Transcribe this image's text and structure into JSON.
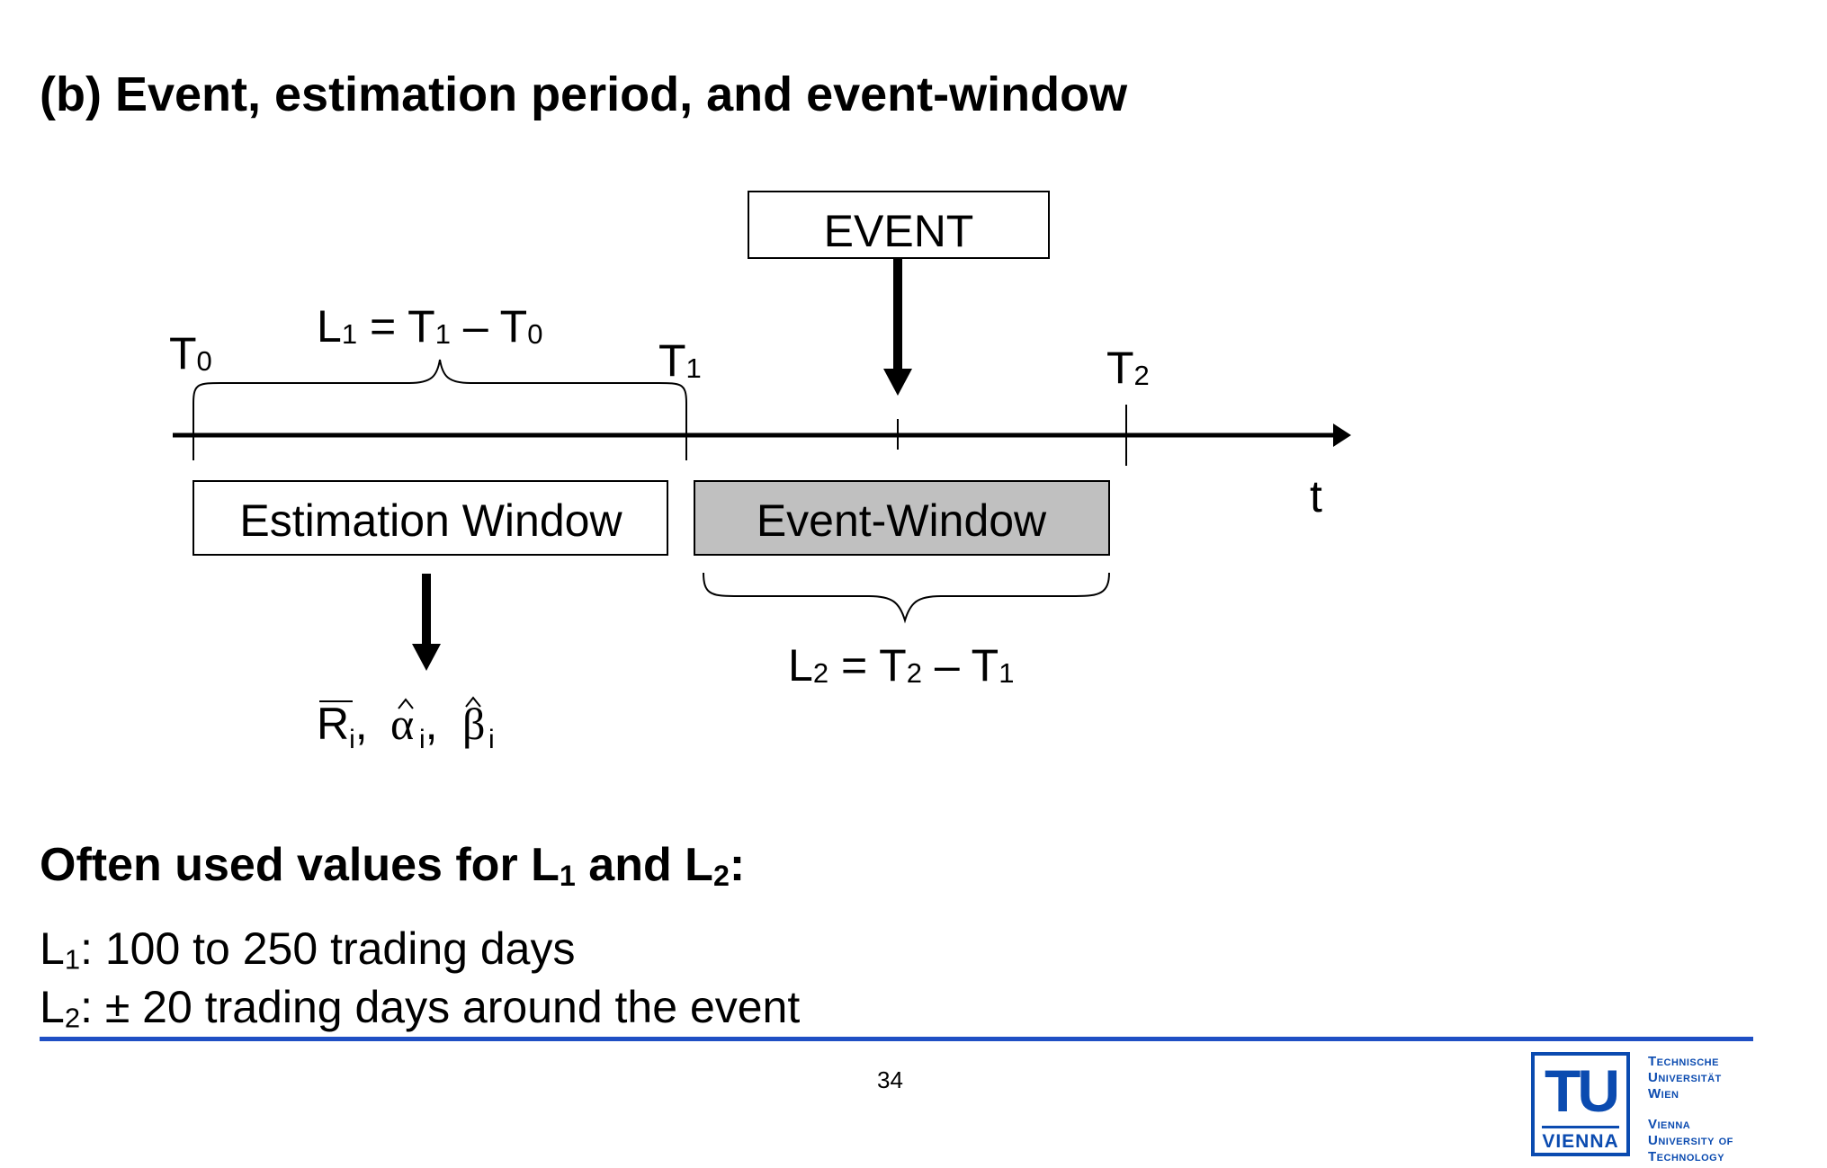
{
  "title": "(b)  Event, estimation period, and event-window",
  "diagram": {
    "event_label": "EVENT",
    "t0": {
      "base": "T",
      "sub": "0"
    },
    "t1": {
      "base": "T",
      "sub": "1"
    },
    "t2": {
      "base": "T",
      "sub": "2"
    },
    "axis_label": "t",
    "l1_formula": {
      "l": "L",
      "l_sub": "1",
      "eq": " = ",
      "a": "T",
      "a_sub": "1",
      "minus": " – ",
      "b": "T",
      "b_sub": "0"
    },
    "l2_formula": {
      "l": "L",
      "l_sub": "2",
      "eq": " = ",
      "a": "T",
      "a_sub": "2",
      "minus": " – ",
      "b": "T",
      "b_sub": "1"
    },
    "estimation_window_label": "Estimation Window",
    "event_window_label": "Event-Window",
    "estimates": {
      "r": "R",
      "alpha": "α",
      "beta": "β",
      "sub": "i",
      "sep": ","
    },
    "colors": {
      "event_window_fill": "#c0c0c0",
      "footer_rule": "#1f4fc4",
      "logo": "#0b4bb0"
    }
  },
  "values": {
    "heading_prefix": "Often used values for L",
    "heading_sub1": "1",
    "heading_mid": " and L",
    "heading_sub2": "2",
    "heading_suffix": ":",
    "l1_prefix": "L",
    "l1_sub": "1",
    "l1_text": ": 100 to 250 trading days",
    "l2_prefix": "L",
    "l2_sub": "2",
    "l2_text": ": ± 20 trading days around the event"
  },
  "footer": {
    "page_number": "34",
    "logo_letters": "TU",
    "logo_city": "VIENNA",
    "logo_de": [
      "Technische",
      "Universität",
      "Wien"
    ],
    "logo_en": [
      "Vienna",
      "University of",
      "Technology"
    ]
  }
}
